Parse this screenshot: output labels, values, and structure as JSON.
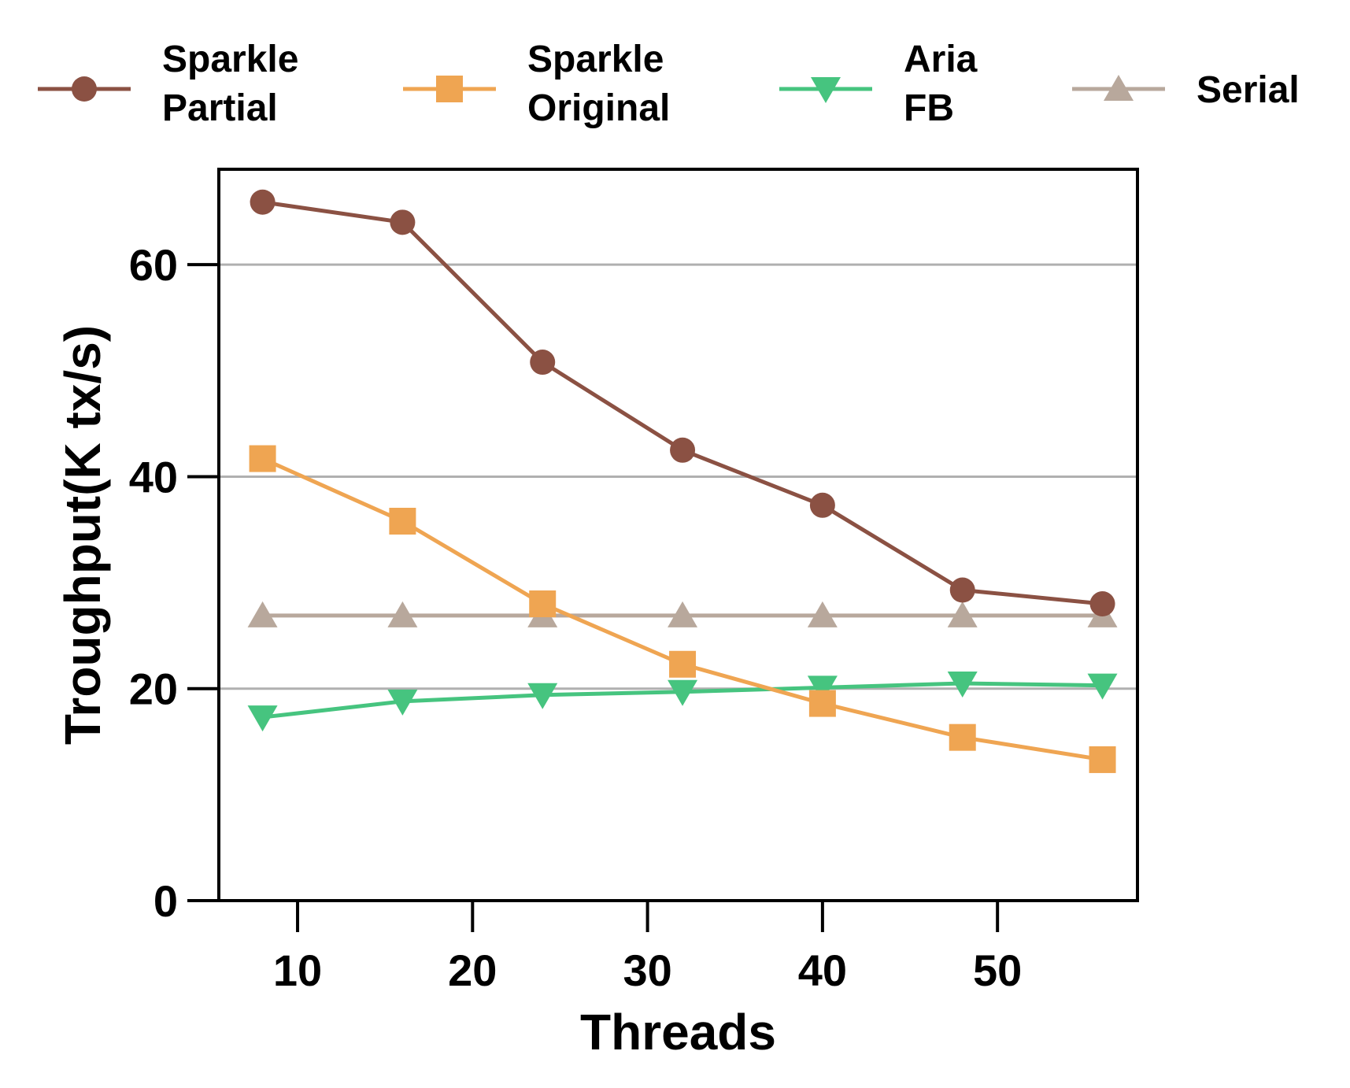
{
  "chart_data": {
    "type": "line",
    "title": "",
    "xlabel": "Threads",
    "ylabel": "Troughput(K tx/s)",
    "xlim": [
      5.5,
      58
    ],
    "ylim": [
      0,
      69
    ],
    "xticks": [
      10,
      20,
      30,
      40,
      50
    ],
    "yticks": [
      0,
      20,
      40,
      60
    ],
    "grid": "horizontal",
    "legend_position": "top",
    "x": [
      8,
      16,
      24,
      32,
      40,
      48,
      56
    ],
    "series": [
      {
        "name": "Sparkle Partial",
        "name_lines": [
          "Sparkle",
          "Partial"
        ],
        "color": "#8B5143",
        "marker": "circle",
        "values": [
          65.9,
          64.0,
          50.8,
          42.5,
          37.3,
          29.3,
          28.0
        ]
      },
      {
        "name": "Sparkle Original",
        "name_lines": [
          "Sparkle",
          "Original"
        ],
        "color": "#EFA552",
        "marker": "square",
        "values": [
          41.7,
          35.8,
          28.0,
          22.3,
          18.6,
          15.4,
          13.3
        ]
      },
      {
        "name": "Aria FB",
        "name_lines": [
          "Aria",
          "FB"
        ],
        "color": "#46C47F",
        "marker": "triangle-down",
        "values": [
          17.3,
          18.8,
          19.4,
          19.7,
          20.1,
          20.5,
          20.3
        ]
      },
      {
        "name": "Serial",
        "name_lines": [
          "Serial"
        ],
        "color": "#B8A89C",
        "marker": "triangle-up",
        "values": [
          26.9,
          26.9,
          26.9,
          26.9,
          26.9,
          26.9,
          26.9
        ]
      }
    ]
  }
}
